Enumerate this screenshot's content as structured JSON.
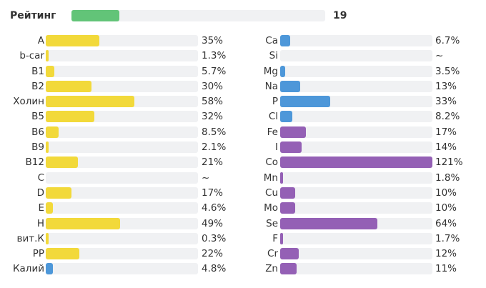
{
  "colors": {
    "yellow": "#f2d93a",
    "blue": "#4d97d9",
    "purple": "#9460b5",
    "green": "#62c478"
  },
  "rating": {
    "label": "Рейтинг",
    "value": "19",
    "fraction": 0.19
  },
  "left": [
    {
      "name": "A",
      "value": "35%",
      "pct": 35,
      "color": "yellow"
    },
    {
      "name": "b-car",
      "value": "1.3%",
      "pct": 1.3,
      "color": "yellow"
    },
    {
      "name": "B1",
      "value": "5.7%",
      "pct": 5.7,
      "color": "yellow"
    },
    {
      "name": "B2",
      "value": "30%",
      "pct": 30,
      "color": "yellow"
    },
    {
      "name": "Холин",
      "value": "58%",
      "pct": 58,
      "color": "yellow"
    },
    {
      "name": "B5",
      "value": "32%",
      "pct": 32,
      "color": "yellow"
    },
    {
      "name": "B6",
      "value": "8.5%",
      "pct": 8.5,
      "color": "yellow"
    },
    {
      "name": "B9",
      "value": "2.1%",
      "pct": 2.1,
      "color": "yellow"
    },
    {
      "name": "B12",
      "value": "21%",
      "pct": 21,
      "color": "yellow"
    },
    {
      "name": "C",
      "value": "~",
      "pct": 0,
      "color": "yellow"
    },
    {
      "name": "D",
      "value": "17%",
      "pct": 17,
      "color": "yellow"
    },
    {
      "name": "E",
      "value": "4.6%",
      "pct": 4.6,
      "color": "yellow"
    },
    {
      "name": "H",
      "value": "49%",
      "pct": 49,
      "color": "yellow"
    },
    {
      "name": "вит.К",
      "value": "0.3%",
      "pct": 0.3,
      "color": "yellow"
    },
    {
      "name": "PP",
      "value": "22%",
      "pct": 22,
      "color": "yellow"
    },
    {
      "name": "Калий",
      "value": "4.8%",
      "pct": 4.8,
      "color": "blue"
    }
  ],
  "right": [
    {
      "name": "Ca",
      "value": "6.7%",
      "pct": 6.7,
      "color": "blue"
    },
    {
      "name": "Si",
      "value": "~",
      "pct": 0,
      "color": "blue"
    },
    {
      "name": "Mg",
      "value": "3.5%",
      "pct": 3.5,
      "color": "blue"
    },
    {
      "name": "Na",
      "value": "13%",
      "pct": 13,
      "color": "blue"
    },
    {
      "name": "P",
      "value": "33%",
      "pct": 33,
      "color": "blue"
    },
    {
      "name": "Cl",
      "value": "8.2%",
      "pct": 8.2,
      "color": "blue"
    },
    {
      "name": "Fe",
      "value": "17%",
      "pct": 17,
      "color": "purple"
    },
    {
      "name": "I",
      "value": "14%",
      "pct": 14,
      "color": "purple"
    },
    {
      "name": "Co",
      "value": "121%",
      "pct": 121,
      "color": "purple"
    },
    {
      "name": "Mn",
      "value": "1.8%",
      "pct": 1.8,
      "color": "purple"
    },
    {
      "name": "Cu",
      "value": "10%",
      "pct": 10,
      "color": "purple"
    },
    {
      "name": "Mo",
      "value": "10%",
      "pct": 10,
      "color": "purple"
    },
    {
      "name": "Se",
      "value": "64%",
      "pct": 64,
      "color": "purple"
    },
    {
      "name": "F",
      "value": "1.7%",
      "pct": 1.7,
      "color": "purple"
    },
    {
      "name": "Cr",
      "value": "12%",
      "pct": 12,
      "color": "purple"
    },
    {
      "name": "Zn",
      "value": "11%",
      "pct": 11,
      "color": "purple"
    }
  ]
}
